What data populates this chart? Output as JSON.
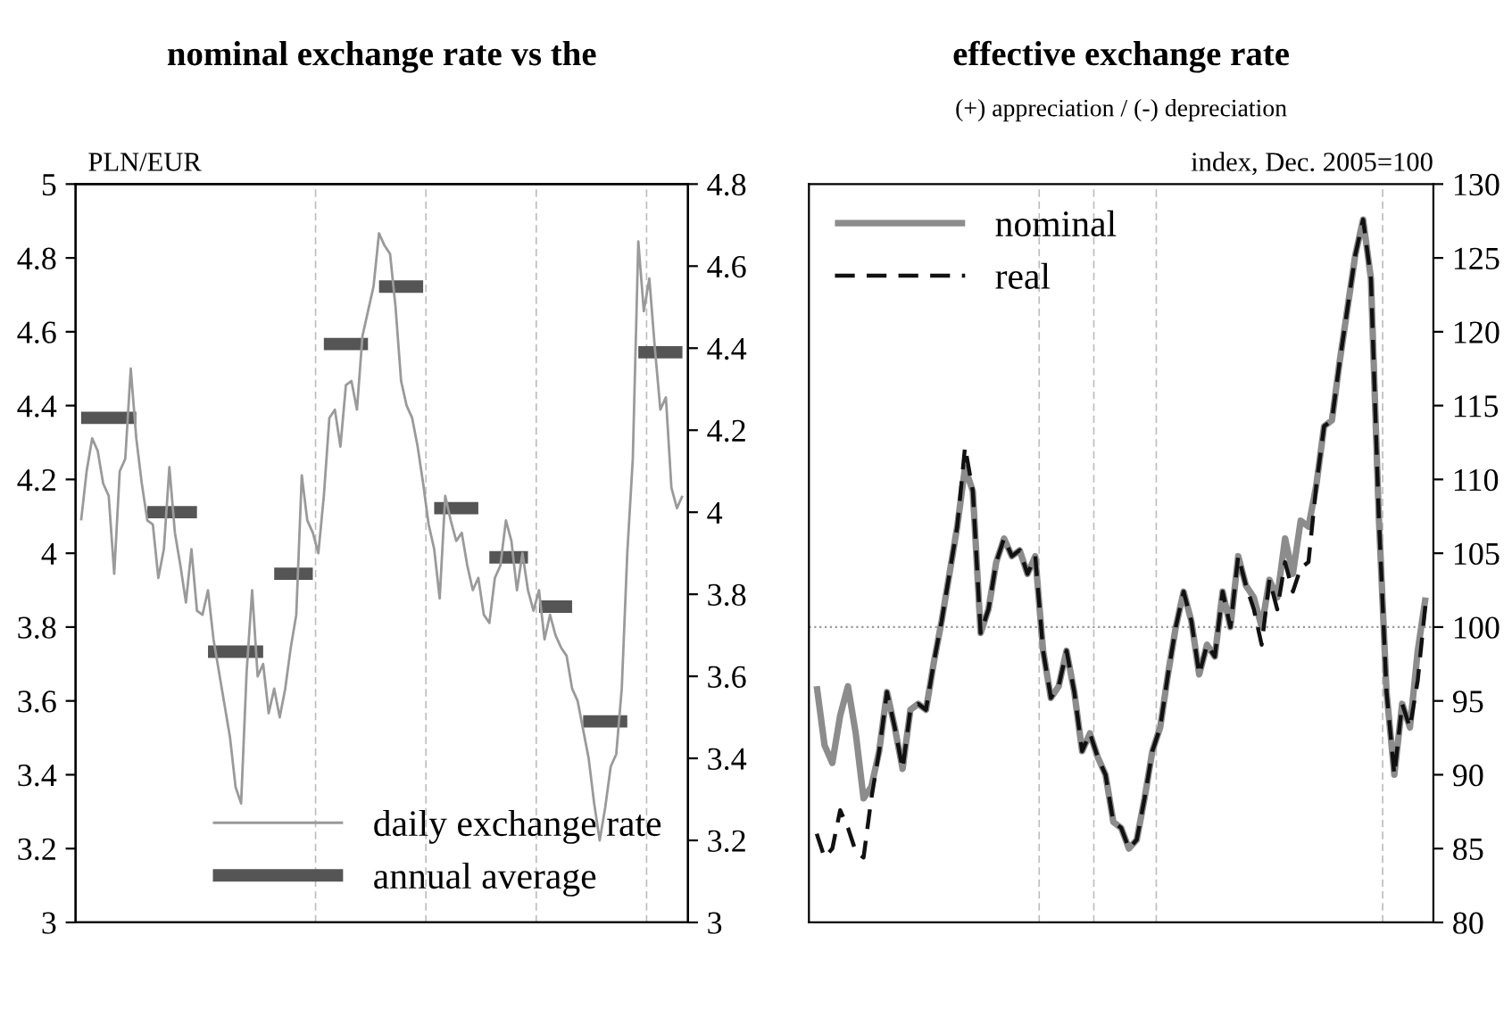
{
  "chart_data": [
    {
      "type": "line",
      "title": "nominal exchange rate vs the",
      "ylabel": "PLN/EUR",
      "categories": [
        null,
        null,
        null,
        null,
        null,
        null,
        null,
        null,
        null,
        null,
        null,
        null,
        null,
        null,
        null,
        null,
        null,
        null,
        null,
        null,
        null,
        null,
        null,
        null,
        null,
        null,
        null,
        null,
        null,
        null,
        null,
        null,
        null,
        null,
        null,
        null,
        null,
        null,
        null,
        null,
        null,
        null,
        null,
        null,
        null,
        null,
        null,
        null,
        null,
        null,
        null,
        null,
        null,
        null,
        null,
        null,
        null,
        null,
        null,
        null,
        null,
        null,
        null,
        null,
        null,
        null,
        null,
        null,
        null,
        null,
        null,
        null,
        null,
        null,
        null,
        null,
        null,
        null,
        null,
        null,
        null,
        null,
        null,
        null,
        null,
        null,
        null,
        null,
        null,
        null,
        null,
        null,
        null,
        null,
        null,
        null,
        null,
        null,
        null,
        null,
        null,
        null,
        null,
        null,
        null,
        null,
        null,
        null,
        null,
        null
      ],
      "ylim": [
        3,
        5
      ],
      "yticks": [
        3,
        3.2,
        3.4,
        3.6,
        3.8,
        4,
        4.2,
        4.4,
        4.6,
        4.8,
        5
      ],
      "y2lim": [
        3,
        4.8
      ],
      "y2ticks": [
        3,
        3.2,
        3.4,
        3.6,
        3.8,
        4,
        4.2,
        4.4,
        4.6,
        4.8
      ],
      "legend": "bottom right",
      "marker": "none",
      "series": [
        {
          "name": "daily exchange rate",
          "color": "#9a9a9a",
          "axis": "y2",
          "values": [
            3.98,
            4.1,
            4.18,
            4.15,
            4.07,
            4.04,
            3.85,
            4.1,
            4.13,
            4.35,
            4.18,
            4.07,
            3.98,
            3.97,
            3.84,
            3.91,
            4.11,
            3.95,
            3.87,
            3.78,
            3.91,
            3.76,
            3.75,
            3.81,
            3.69,
            3.61,
            3.53,
            3.45,
            3.33,
            3.29,
            3.61,
            3.81,
            3.6,
            3.63,
            3.51,
            3.57,
            3.5,
            3.57,
            3.67,
            3.75,
            4.09,
            3.98,
            3.95,
            3.9,
            4.04,
            4.23,
            4.25,
            4.16,
            4.31,
            4.32,
            4.25,
            4.43,
            4.49,
            4.55,
            4.68,
            4.65,
            4.63,
            4.5,
            4.32,
            4.26,
            4.23,
            4.16,
            4.07,
            3.97,
            3.91,
            3.79,
            4.04,
            3.98,
            3.93,
            3.95,
            3.87,
            3.81,
            3.84,
            3.75,
            3.73,
            3.84,
            3.87,
            3.98,
            3.93,
            3.81,
            3.9,
            3.81,
            3.76,
            3.81,
            3.69,
            3.75,
            3.7,
            3.67,
            3.65,
            3.57,
            3.54,
            3.47,
            3.4,
            3.29,
            3.2,
            3.28,
            3.38,
            3.41,
            3.57,
            3.9,
            4.13,
            4.66,
            4.49,
            4.57,
            4.4,
            4.25,
            4.28,
            4.06,
            4.01,
            4.04
          ]
        },
        {
          "name": "annual average",
          "color": "#555555",
          "axis": "y2",
          "values": [
            4.23,
            4.23,
            4.23,
            4.23,
            4.23,
            4.23,
            4.23,
            4.23,
            4.23,
            4.23,
            4.23,
            null,
            4.0,
            4.0,
            4.0,
            4.0,
            4.0,
            4.0,
            4.0,
            4.0,
            4.0,
            4.0,
            null,
            3.66,
            3.66,
            3.66,
            3.66,
            3.66,
            3.66,
            3.66,
            3.66,
            3.66,
            3.66,
            3.66,
            null,
            3.85,
            3.85,
            3.85,
            3.85,
            3.85,
            3.85,
            3.85,
            3.85,
            null,
            4.41,
            4.41,
            4.41,
            4.41,
            4.41,
            4.41,
            4.41,
            4.41,
            4.41,
            null,
            4.55,
            4.55,
            4.55,
            4.55,
            4.55,
            4.55,
            4.55,
            4.55,
            4.55,
            null,
            4.01,
            4.01,
            4.01,
            4.01,
            4.01,
            4.01,
            4.01,
            4.01,
            4.01,
            null,
            3.89,
            3.89,
            3.89,
            3.89,
            3.89,
            3.89,
            3.89,
            3.89,
            null,
            3.77,
            3.77,
            3.77,
            3.77,
            3.77,
            3.77,
            3.77,
            null,
            3.49,
            3.49,
            3.49,
            3.49,
            3.49,
            3.49,
            3.49,
            3.49,
            3.49,
            null,
            4.39,
            4.39,
            4.39,
            4.39,
            4.39,
            4.39,
            4.39,
            4.39,
            4.39
          ]
        }
      ]
    },
    {
      "type": "line",
      "title": "effective exchange rate",
      "subtitle": "(+) appreciation / (-) depreciation",
      "ylabel": "index, Dec. 2005=100",
      "categories": [
        null,
        null,
        null,
        null,
        null,
        null,
        null,
        null,
        null,
        null,
        null,
        null,
        null,
        null,
        null,
        null,
        null,
        null,
        null,
        null,
        null,
        null,
        null,
        null,
        null,
        null,
        null,
        null,
        null,
        null,
        null,
        null,
        null,
        null,
        null,
        null,
        null,
        null,
        null,
        null,
        null,
        null,
        null,
        null,
        null,
        null,
        null,
        null,
        null,
        null,
        null,
        null,
        null,
        null,
        null,
        null,
        null,
        null,
        null,
        null,
        null,
        null,
        null,
        null,
        null,
        null,
        null,
        null,
        null,
        null,
        null,
        null,
        null,
        null,
        null,
        null,
        null,
        null,
        null
      ],
      "ylim": [
        80,
        130
      ],
      "yticks": [
        80,
        85,
        90,
        95,
        100,
        105,
        110,
        115,
        120,
        125,
        130
      ],
      "legend": "top left",
      "marker": "none",
      "series": [
        {
          "name": "nominal",
          "color": "#8c8c8c",
          "line_style": "solid",
          "values": [
            96.0,
            92.0,
            90.8,
            94.0,
            96.0,
            92.8,
            88.4,
            89.2,
            91.6,
            95.6,
            93.2,
            90.4,
            94.4,
            94.8,
            94.4,
            97.6,
            100.4,
            103.6,
            106.8,
            110.8,
            109.2,
            99.6,
            101.2,
            104.4,
            106.0,
            104.8,
            105.2,
            103.6,
            104.8,
            98.4,
            95.2,
            96.0,
            98.4,
            95.6,
            91.6,
            92.8,
            91.2,
            90.0,
            86.8,
            86.4,
            85.0,
            85.6,
            88.4,
            91.6,
            93.2,
            96.8,
            100.0,
            102.4,
            100.4,
            96.8,
            98.8,
            98.0,
            102.4,
            100.0,
            104.8,
            102.8,
            102.0,
            100.0,
            103.2,
            102.0,
            106.0,
            103.6,
            107.2,
            106.8,
            109.6,
            113.6,
            114.0,
            118.0,
            121.6,
            125.2,
            127.6,
            123.6,
            107.6,
            95.6,
            90.0,
            94.8,
            93.2,
            98.4,
            102.0
          ]
        },
        {
          "name": "real",
          "color": "#111111",
          "line_style": "dashed",
          "values": [
            86.0,
            84.4,
            85.0,
            87.6,
            86.4,
            84.8,
            84.4,
            88.4,
            91.6,
            95.6,
            93.2,
            90.4,
            94.4,
            94.8,
            94.4,
            97.6,
            100.4,
            103.6,
            106.8,
            112.2,
            109.2,
            99.6,
            101.2,
            104.4,
            106.0,
            104.8,
            105.2,
            103.6,
            104.8,
            98.4,
            95.2,
            96.0,
            98.4,
            95.6,
            91.6,
            92.8,
            91.2,
            90.0,
            86.8,
            86.4,
            85.0,
            85.6,
            88.4,
            91.6,
            93.2,
            96.8,
            100.0,
            102.4,
            100.4,
            96.8,
            98.8,
            98.0,
            102.4,
            100.0,
            104.8,
            102.8,
            101.2,
            98.8,
            103.2,
            101.2,
            104.4,
            102.4,
            104.0,
            104.4,
            109.6,
            113.6,
            114.0,
            118.0,
            121.6,
            125.2,
            127.6,
            123.6,
            107.6,
            95.6,
            90.0,
            94.8,
            93.2,
            96.4,
            101.6
          ]
        }
      ],
      "ref_lines": [
        {
          "axis": "y",
          "value": 100,
          "color": "#999999",
          "line_style": "dotted"
        }
      ]
    }
  ]
}
